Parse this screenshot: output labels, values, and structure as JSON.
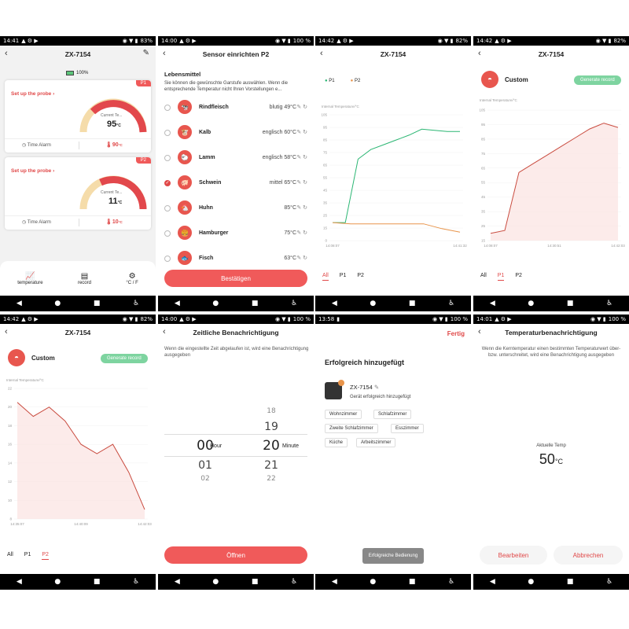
{
  "s1": {
    "time": "14:41",
    "battery": "83%",
    "title": "ZX-7154",
    "device_battery": "100%",
    "p1": {
      "badge": "P1",
      "setup": "Set up the probe ›",
      "current_label": "Current Te...",
      "current": "95",
      "unit": "°C",
      "alarm": "Time Alarm",
      "target": "90",
      "target_unit": "°C"
    },
    "p2": {
      "badge": "P2",
      "setup": "Set up the probe ›",
      "current_label": "Current Te...",
      "current": "11",
      "unit": "°C",
      "alarm": "Time Alarm",
      "target": "10",
      "target_unit": "°C"
    },
    "bottom": [
      {
        "label": "temperature",
        "icon": "chart-icon"
      },
      {
        "label": "record",
        "icon": "record-icon"
      },
      {
        "label": "°C / F",
        "icon": "gear-icon"
      }
    ]
  },
  "s2": {
    "time": "14:00",
    "battery": "100 %",
    "title": "Sensor einrichten P2",
    "section": "Lebensmittel",
    "desc": "Sie können die gewünschte Garstufe auswählen. Wenn die entsprechende Temperatur nicht Ihren Vorstellungen e...",
    "foods": [
      {
        "name": "Rindfleisch",
        "level": "blutig",
        "temp": "49°C",
        "selected": false
      },
      {
        "name": "Kalb",
        "level": "englisch",
        "temp": "60°C",
        "selected": false
      },
      {
        "name": "Lamm",
        "level": "englisch",
        "temp": "58°C",
        "selected": false
      },
      {
        "name": "Schwein",
        "level": "mittel",
        "temp": "65°C",
        "selected": true
      },
      {
        "name": "Huhn",
        "level": "",
        "temp": "85°C",
        "selected": false
      },
      {
        "name": "Hamburger",
        "level": "",
        "temp": "75°C",
        "selected": false
      },
      {
        "name": "Fisch",
        "level": "",
        "temp": "63°C",
        "selected": false
      }
    ],
    "confirm": "Bestätigen"
  },
  "s3": {
    "time": "14:42",
    "battery": "82%",
    "title": "ZX-7154",
    "legend": [
      "P1",
      "P2"
    ],
    "ylabel": "Internal Temperature/°C",
    "yticks": [
      "105",
      "95",
      "85",
      "75",
      "65",
      "55",
      "45",
      "35",
      "25",
      "15",
      "0"
    ],
    "xticks": [
      "14:08:07",
      "14:41:32"
    ],
    "tabs": [
      "All",
      "P1",
      "P2"
    ],
    "selected": "All"
  },
  "s4": {
    "time": "14:42",
    "battery": "82%",
    "title": "ZX-7154",
    "custom": "Custom",
    "generate": "Generate record",
    "ylabel": "Internal Temperature/°C",
    "yticks": [
      "105",
      "95",
      "85",
      "75",
      "65",
      "55",
      "45",
      "35",
      "25",
      "15"
    ],
    "xticks": [
      "14:08:07",
      "14:30:51",
      "14:42:03"
    ],
    "tabs": [
      "All",
      "P1",
      "P2"
    ],
    "selected": "P1"
  },
  "s5": {
    "time": "14:42",
    "battery": "82%",
    "title": "ZX-7154",
    "custom": "Custom",
    "generate": "Generate record",
    "ylabel": "Internal Temperature/°C",
    "yticks": [
      "22",
      "20",
      "18",
      "16",
      "14",
      "12",
      "10",
      "8"
    ],
    "xticks": [
      "14:35:07",
      "14:40:09",
      "14:42:03"
    ],
    "tabs": [
      "All",
      "P1",
      "P2"
    ],
    "selected": "P2"
  },
  "s6": {
    "time": "14:00",
    "battery": "100 %",
    "title": "Zeitliche Benachrichtigung",
    "desc": "Wenn die eingestellte Zeit abgelaufen ist, wird eine Benachrichtigung ausgegeben",
    "hours": [
      "18",
      "19",
      "00",
      "01",
      "02"
    ],
    "minutes": [
      "18",
      "19",
      "20",
      "21",
      "22"
    ],
    "hours_left": [
      "",
      "",
      "00",
      "01",
      "02"
    ],
    "hour_label": "Hour",
    "minute_label": "Minute",
    "selected_hour": "00",
    "selected_minute": "20",
    "button": "Öffnen"
  },
  "s7": {
    "time": "13:58",
    "battery": "100 %",
    "done": "Fertig",
    "title": "Erfolgreich hinzugefügt",
    "device": "ZX-7154",
    "device_sub": "Gerät erfolgreich hinzugefügt",
    "rooms": [
      "Wohnzimmer",
      "Schlafzimmer",
      "Zweite Schlafzimmer",
      "Esszimmer",
      "Küche",
      "Arbeitszimmer"
    ],
    "toast": "Erfolgreiche Bedienung"
  },
  "s8": {
    "time": "14:01",
    "battery": "100 %",
    "title": "Temperaturbenachrichtigung",
    "desc": "Wenn die Kerntemperatur einen bestimmten Temperaturwert über- bzw. unterschreitet, wird eine Benachrichtigung ausgegeben",
    "current_label": "Aktuelle Temp",
    "current": "50",
    "unit": "°C",
    "edit": "Bearbeiten",
    "cancel": "Abbrechen"
  },
  "chart_data": [
    {
      "type": "line",
      "title": "",
      "ylabel": "Internal Temperature/°C",
      "ylim": [
        0,
        105
      ],
      "series": [
        {
          "name": "P1",
          "x": [
            "14:08:07",
            "14:09",
            "14:11",
            "14:14",
            "14:18",
            "14:22",
            "14:26",
            "14:30",
            "14:33",
            "14:37",
            "14:41:32"
          ],
          "y": [
            15,
            15,
            68,
            76,
            80,
            84,
            88,
            93,
            92,
            91,
            91
          ]
        },
        {
          "name": "P2",
          "x": [
            "14:08:07",
            "14:12",
            "14:18",
            "14:24",
            "14:30",
            "14:35",
            "14:38",
            "14:41:32"
          ],
          "y": [
            15,
            14,
            14,
            14,
            14,
            14,
            10,
            7
          ]
        }
      ]
    },
    {
      "type": "area",
      "title": "",
      "ylabel": "Internal Temperature/°C",
      "ylim": [
        15,
        105
      ],
      "series": [
        {
          "name": "P1",
          "x": [
            "14:08:07",
            "14:10",
            "14:15",
            "14:20",
            "14:25",
            "14:30:51",
            "14:34",
            "14:37",
            "14:40",
            "14:42:03"
          ],
          "y": [
            20,
            22,
            62,
            68,
            74,
            80,
            86,
            92,
            96,
            93
          ]
        }
      ]
    },
    {
      "type": "area",
      "title": "",
      "ylabel": "Internal Temperature/°C",
      "ylim": [
        8,
        22
      ],
      "series": [
        {
          "name": "P2",
          "x": [
            "14:35:07",
            "14:36",
            "14:37",
            "14:38",
            "14:39",
            "14:40:09",
            "14:41",
            "14:41:30",
            "14:42:03"
          ],
          "y": [
            20.5,
            19,
            20,
            18.5,
            16,
            15,
            16,
            13,
            9
          ]
        }
      ]
    }
  ]
}
